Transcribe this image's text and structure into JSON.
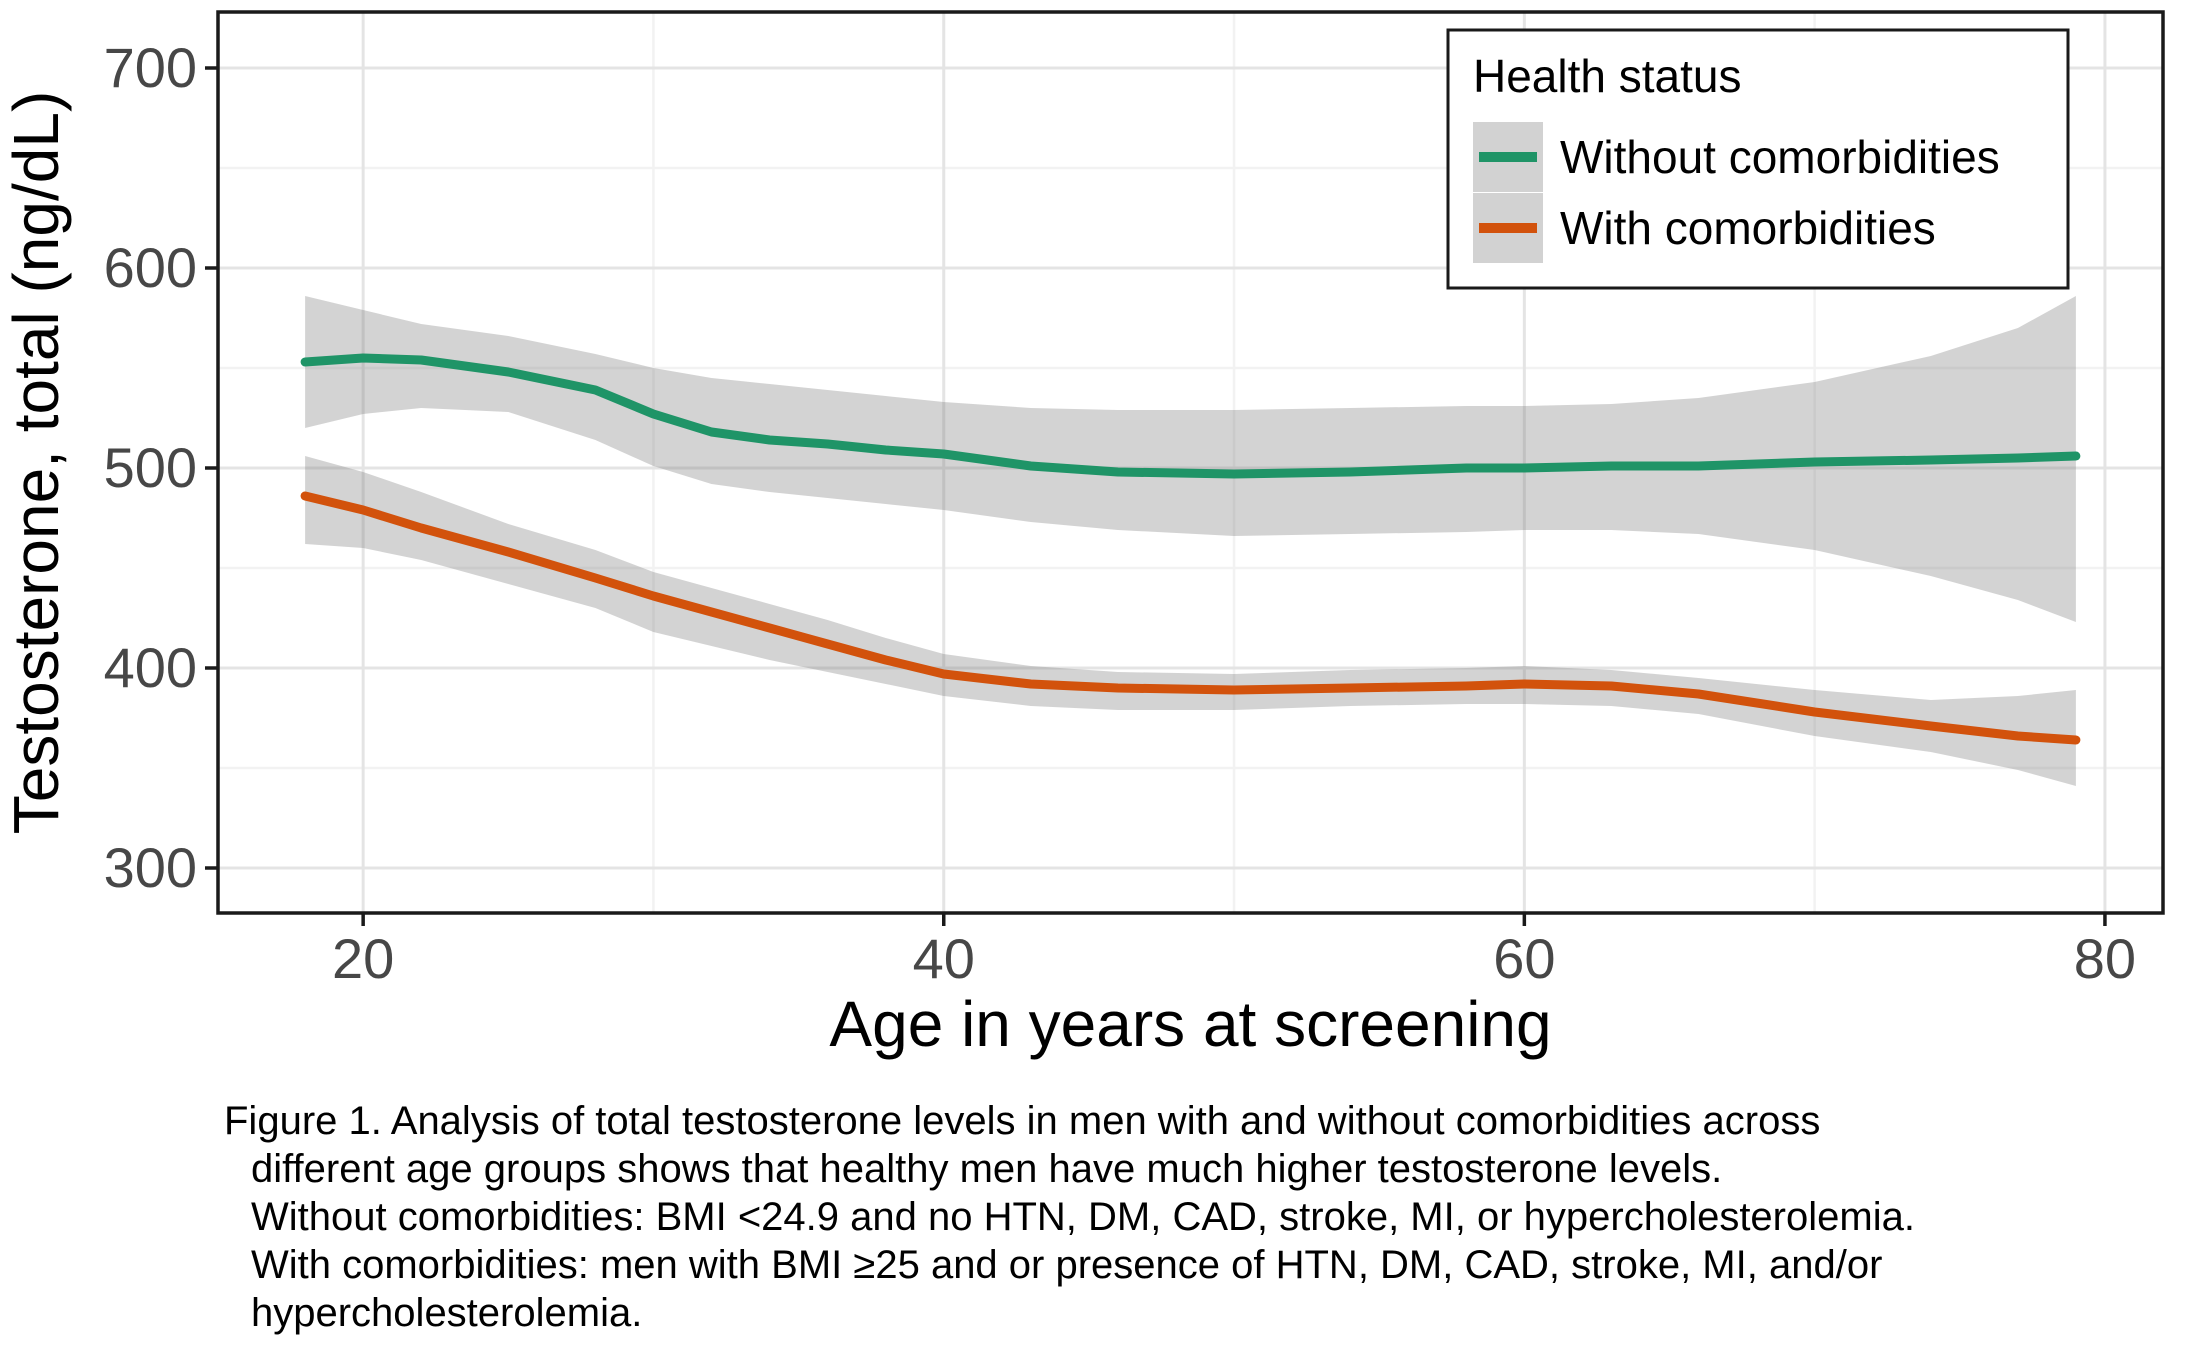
{
  "figure_caption": {
    "lines": [
      "Figure 1. Analysis of total testosterone levels in men with and without comorbidities across",
      "different age groups shows that healthy men have much higher testosterone levels.",
      "Without comorbidities: BMI <24.9 and no HTN, DM, CAD, stroke, MI, or hypercholesterolemia.",
      "With comorbidities: men with BMI ≥25 and or presence of HTN, DM, CAD, stroke, MI, and/or",
      "hypercholesterolemia."
    ]
  },
  "chart_data": {
    "type": "line",
    "title": "",
    "xlabel": "Age in years at screening",
    "ylabel": "Testosterone, total (ng/dL)",
    "xlim": [
      15,
      82
    ],
    "ylim": [
      277.5,
      728
    ],
    "x_ticks": [
      20,
      40,
      60,
      80
    ],
    "y_ticks": [
      300,
      400,
      500,
      600,
      700
    ],
    "x_minor": [
      30,
      50,
      70
    ],
    "y_minor": [
      350,
      450,
      550,
      650
    ],
    "grid": "major and minor, light grey on white, black panel border",
    "legend": {
      "title": "Health status",
      "position": "top-right inside panel",
      "items": [
        {
          "label": "Without comorbidities",
          "color": "#1f9467"
        },
        {
          "label": "With comorbidities",
          "color": "#d2520c"
        }
      ]
    },
    "colors": {
      "band": "#d2d2d2",
      "grid_major": "#e4e4e4",
      "grid_minor": "#f2f2f2",
      "axis_text": "#474747",
      "panel_border": "#1a1a1a"
    },
    "series": [
      {
        "name": "Without comorbidities",
        "color": "#1f9467",
        "x": [
          18,
          20,
          22,
          25,
          28,
          30,
          32,
          34,
          36,
          38,
          40,
          43,
          46,
          50,
          54,
          58,
          60,
          63,
          66,
          70,
          74,
          77,
          79
        ],
        "y": [
          553,
          555,
          554,
          548,
          539,
          527,
          518,
          514,
          512,
          509,
          507,
          501,
          498,
          497,
          498,
          500,
          500,
          501,
          501,
          503,
          504,
          505,
          506
        ],
        "upper": [
          586,
          579,
          572,
          566,
          557,
          550,
          545,
          542,
          539,
          536,
          533,
          530,
          529,
          529,
          530,
          531,
          531,
          532,
          535,
          543,
          556,
          570,
          586
        ],
        "lower": [
          520,
          527,
          530,
          528,
          514,
          501,
          492,
          488,
          485,
          482,
          479,
          473,
          469,
          466,
          467,
          468,
          469,
          469,
          467,
          459,
          446,
          434,
          423
        ]
      },
      {
        "name": "With comorbidities",
        "color": "#d2520c",
        "x": [
          18,
          20,
          22,
          25,
          28,
          30,
          32,
          34,
          36,
          38,
          40,
          43,
          46,
          50,
          54,
          58,
          60,
          63,
          66,
          70,
          74,
          77,
          79
        ],
        "y": [
          486,
          479,
          470,
          458,
          445,
          436,
          428,
          420,
          412,
          404,
          397,
          392,
          390,
          389,
          390,
          391,
          392,
          391,
          387,
          378,
          371,
          366,
          364
        ],
        "upper": [
          506,
          498,
          488,
          472,
          459,
          448,
          440,
          432,
          424,
          415,
          407,
          401,
          398,
          397,
          399,
          400,
          401,
          399,
          395,
          389,
          384,
          386,
          389
        ],
        "lower": [
          462,
          460,
          454,
          442,
          430,
          418,
          411,
          404,
          398,
          392,
          386,
          381,
          379,
          379,
          381,
          382,
          382,
          381,
          377,
          366,
          358,
          349,
          341
        ]
      }
    ]
  }
}
